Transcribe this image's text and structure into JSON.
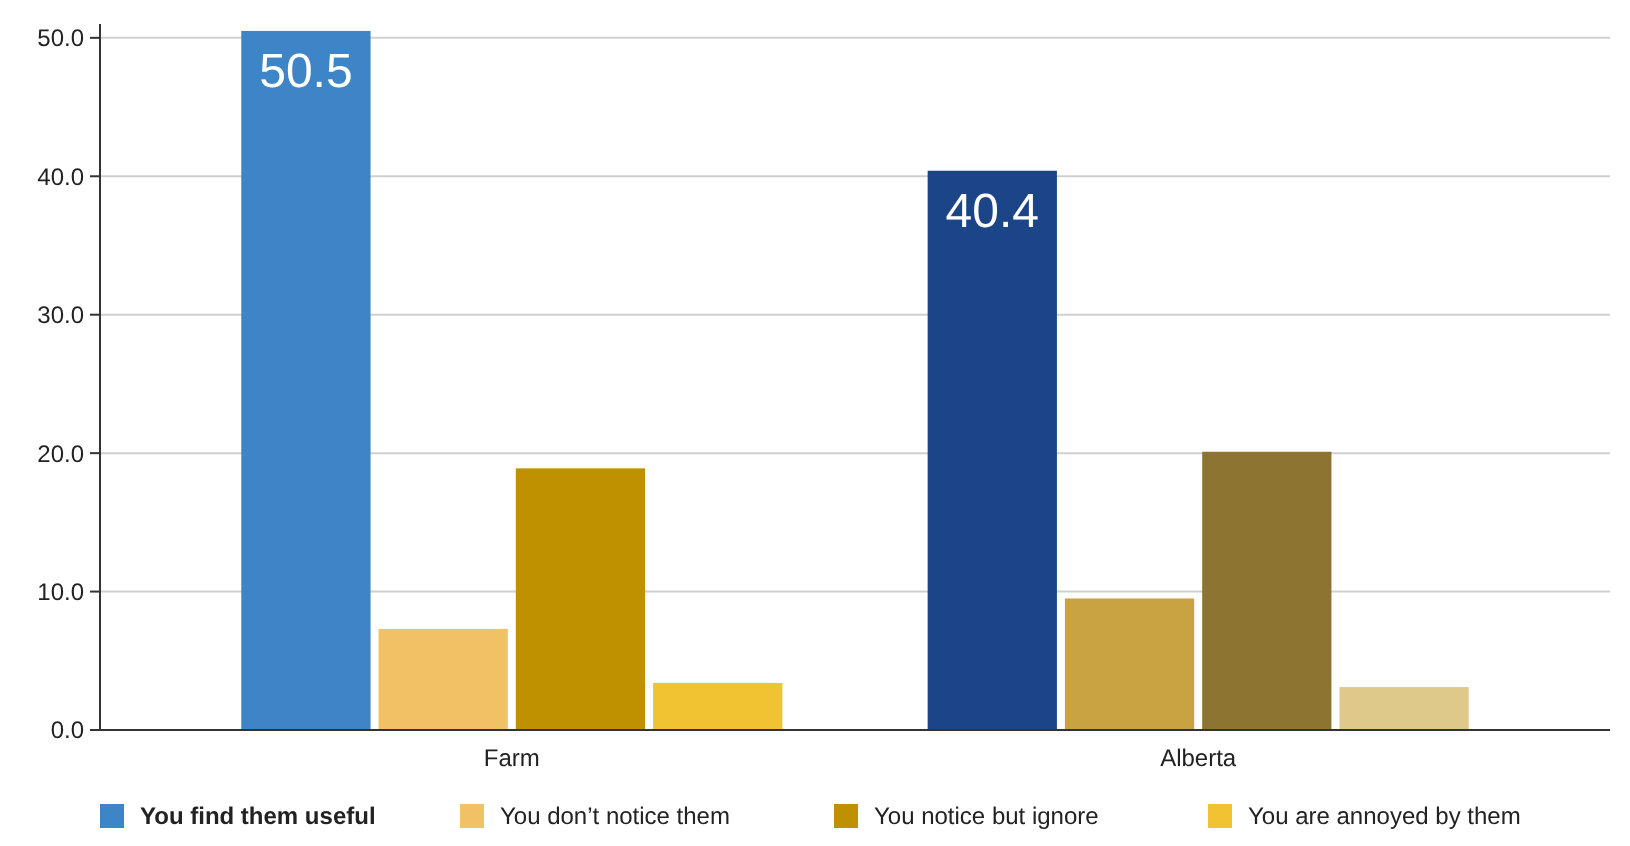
{
  "chart_data": {
    "type": "bar",
    "categories": [
      "Farm",
      "Alberta"
    ],
    "series": [
      {
        "name": "You find them useful",
        "color": "#3d85c6",
        "colors": [
          "#3d85c6",
          "#1c4587"
        ],
        "values": [
          50.5,
          40.4
        ],
        "value_labels": [
          "50.5",
          "40.4"
        ]
      },
      {
        "name": "You don’t notice them",
        "color": "#f1c166",
        "colors": [
          "#f1c166",
          "#c9a342"
        ],
        "values": [
          7.3,
          9.5
        ]
      },
      {
        "name": "You notice but ignore",
        "color": "#bf9000",
        "colors": [
          "#bf9000",
          "#8d7431"
        ],
        "values": [
          18.9,
          20.1
        ]
      },
      {
        "name": "You are annoyed by them",
        "color": "#f1c232",
        "colors": [
          "#f1c232",
          "#dfc98a"
        ],
        "values": [
          3.4,
          3.1
        ]
      }
    ],
    "ylim": [
      0,
      51
    ],
    "yticks": [
      {
        "value": 0,
        "label": "0.0"
      },
      {
        "value": 10,
        "label": "10.0"
      },
      {
        "value": 20,
        "label": "20.0"
      },
      {
        "value": 30,
        "label": "30.0"
      },
      {
        "value": 40,
        "label": "40.0"
      },
      {
        "value": 50,
        "label": "50.0"
      }
    ],
    "grid": "y",
    "legend": "bottom"
  }
}
